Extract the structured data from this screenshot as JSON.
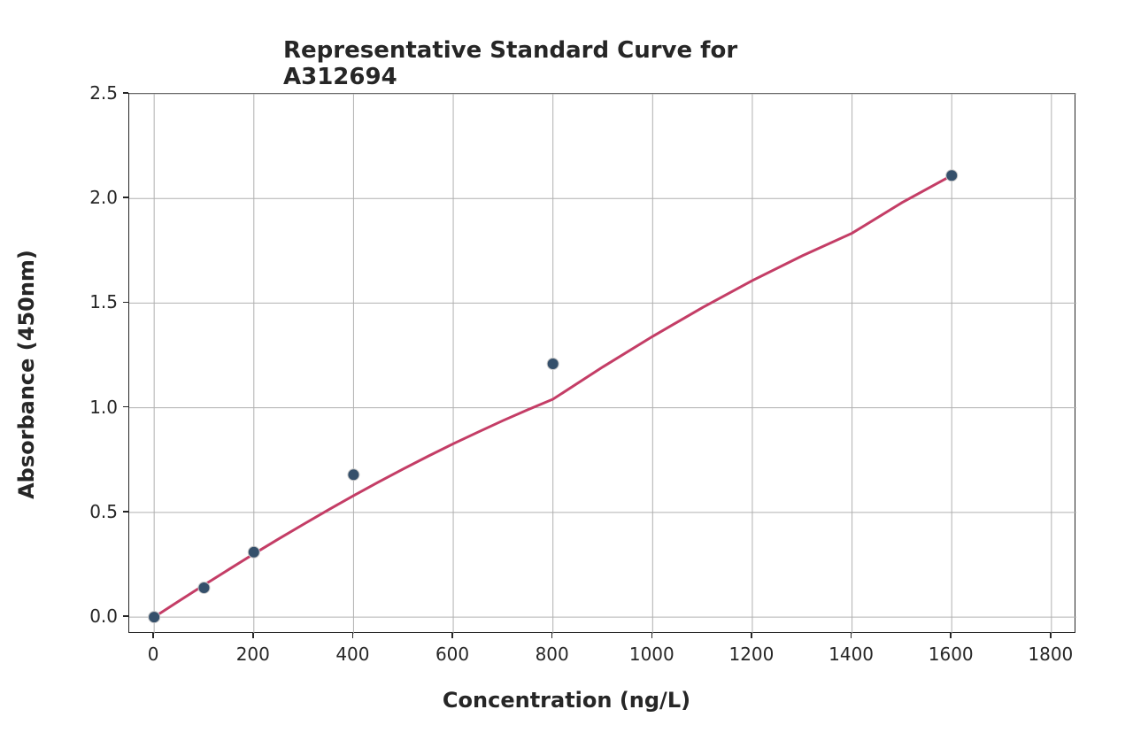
{
  "chart": {
    "type": "scatter-line",
    "title": "Representative Standard Curve for A312694",
    "title_fontsize": 26,
    "title_fontweight": "bold",
    "title_color": "#262626",
    "xlabel": "Concentration (ng/L)",
    "ylabel": "Absorbance (450nm)",
    "label_fontsize": 24,
    "label_fontweight": "bold",
    "label_color": "#262626",
    "tick_fontsize": 20,
    "tick_color": "#262626",
    "background_color": "#ffffff",
    "plot_background_color": "#ffffff",
    "border_color": "#262626",
    "border_width": 1.5,
    "grid_color": "#b0b0b0",
    "grid_width": 1,
    "xlim": [
      -50,
      1850
    ],
    "ylim": [
      -0.08,
      2.5
    ],
    "xticks": [
      0,
      200,
      400,
      600,
      800,
      1000,
      1200,
      1400,
      1600,
      1800
    ],
    "yticks": [
      0.0,
      0.5,
      1.0,
      1.5,
      2.0,
      2.5
    ],
    "ytick_labels": [
      "0.0",
      "0.5",
      "1.0",
      "1.5",
      "2.0",
      "2.5"
    ],
    "data_points": {
      "x": [
        0,
        100,
        200,
        400,
        800,
        1600
      ],
      "y": [
        0.0,
        0.14,
        0.31,
        0.68,
        1.21,
        2.11
      ]
    },
    "marker": {
      "style": "circle",
      "size": 13,
      "fill_color": "#35506b",
      "edge_color": "#c8c8c8",
      "edge_width": 1
    },
    "line": {
      "color": "#c43d66",
      "width": 3
    },
    "curve_points": {
      "x": [
        0,
        50,
        100,
        150,
        200,
        250,
        300,
        350,
        400,
        450,
        500,
        550,
        600,
        650,
        700,
        750,
        800,
        900,
        1000,
        1100,
        1200,
        1300,
        1400,
        1500,
        1600
      ],
      "y": [
        0.0,
        0.077,
        0.153,
        0.228,
        0.302,
        0.374,
        0.444,
        0.513,
        0.58,
        0.645,
        0.708,
        0.769,
        0.828,
        0.884,
        0.939,
        0.991,
        1.041,
        1.195,
        1.341,
        1.479,
        1.608,
        1.726,
        1.834,
        1.98,
        2.11
      ]
    },
    "aspect_ratio": "1280:845"
  }
}
